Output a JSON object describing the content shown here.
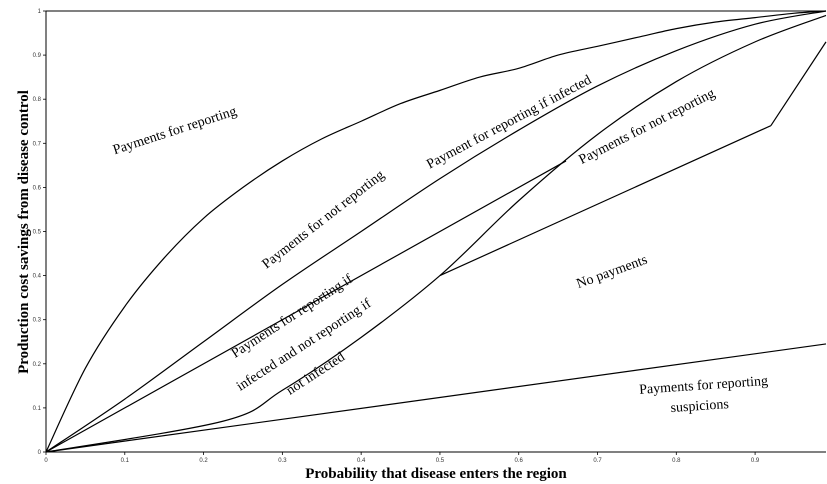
{
  "chart_data": {
    "type": "line",
    "title": "",
    "xlabel": "Probability that disease enters the region",
    "ylabel": "Production cost savings from disease control",
    "xlim": [
      0,
      1
    ],
    "ylim": [
      0,
      1
    ],
    "x_ticks": [
      "0",
      "0.1",
      "0.2",
      "0.3",
      "0.4",
      "0.5",
      "0.6",
      "0.7",
      "0.8",
      "0.9"
    ],
    "y_ticks": [
      "0",
      "0.1",
      "0.2",
      "0.3",
      "0.4",
      "0.5",
      "0.6",
      "0.7",
      "0.8",
      "0.9",
      "1"
    ],
    "grid": false,
    "legend": "none",
    "boundaries": [
      {
        "id": "top-concave",
        "points": [
          [
            0,
            0
          ],
          [
            0.05,
            0.19
          ],
          [
            0.1,
            0.33
          ],
          [
            0.15,
            0.44
          ],
          [
            0.2,
            0.53
          ],
          [
            0.25,
            0.6
          ],
          [
            0.3,
            0.66
          ],
          [
            0.35,
            0.71
          ],
          [
            0.4,
            0.75
          ],
          [
            0.45,
            0.79
          ],
          [
            0.5,
            0.82
          ],
          [
            0.55,
            0.85
          ],
          [
            0.6,
            0.87
          ],
          [
            0.65,
            0.9
          ],
          [
            0.7,
            0.92
          ],
          [
            0.75,
            0.94
          ],
          [
            0.8,
            0.96
          ],
          [
            0.85,
            0.975
          ],
          [
            0.9,
            0.985
          ],
          [
            0.95,
            0.995
          ],
          [
            0.99,
            1.0
          ]
        ]
      },
      {
        "id": "second-curve",
        "points": [
          [
            0,
            0
          ],
          [
            0.1,
            0.12
          ],
          [
            0.2,
            0.25
          ],
          [
            0.3,
            0.38
          ],
          [
            0.4,
            0.5
          ],
          [
            0.5,
            0.62
          ],
          [
            0.6,
            0.73
          ],
          [
            0.7,
            0.83
          ],
          [
            0.8,
            0.91
          ],
          [
            0.9,
            0.97
          ],
          [
            0.99,
            1.0
          ]
        ]
      },
      {
        "id": "straight-to-0.66",
        "points": [
          [
            0,
            0
          ],
          [
            0.66,
            0.66
          ]
        ]
      },
      {
        "id": "convex-curve",
        "points": [
          [
            0,
            0
          ],
          [
            0.225,
            0.07
          ],
          [
            0.3,
            0.14
          ],
          [
            0.4,
            0.26
          ],
          [
            0.5,
            0.4
          ],
          [
            0.6,
            0.57
          ],
          [
            0.7,
            0.72
          ],
          [
            0.8,
            0.84
          ],
          [
            0.9,
            0.93
          ],
          [
            0.99,
            0.99
          ]
        ]
      },
      {
        "id": "mid-segment",
        "points": [
          [
            0.5,
            0.4
          ],
          [
            0.92,
            0.74
          ]
        ]
      },
      {
        "id": "right-end-segment",
        "points": [
          [
            0.92,
            0.74
          ],
          [
            0.99,
            0.93
          ]
        ]
      },
      {
        "id": "bottom-line",
        "points": [
          [
            0,
            0
          ],
          [
            0.99,
            0.245
          ]
        ]
      }
    ],
    "annotations": [
      {
        "text": "Payments for reporting",
        "x": 0.165,
        "y": 0.72,
        "rotate": -18
      },
      {
        "text": "Payments for not reporting",
        "x": 0.355,
        "y": 0.52,
        "rotate": -38
      },
      {
        "text": "Payment for reporting if infected",
        "x": 0.59,
        "y": 0.74,
        "rotate": -28
      },
      {
        "text": "Payments for not reporting",
        "x": 0.765,
        "y": 0.73,
        "rotate": -27
      },
      {
        "text": "No payments",
        "x": 0.72,
        "y": 0.4,
        "rotate": -20
      },
      {
        "text": "Payments for reporting if",
        "x": 0.315,
        "y": 0.3,
        "rotate": -33
      },
      {
        "text": "infected and not reporting if",
        "x": 0.33,
        "y": 0.235,
        "rotate": -33
      },
      {
        "text": "not infected",
        "x": 0.345,
        "y": 0.17,
        "rotate": -33
      },
      {
        "text": "Payments for reporting",
        "x": 0.835,
        "y": 0.142,
        "rotate": -4
      },
      {
        "text": "suspicions",
        "x": 0.83,
        "y": 0.095,
        "rotate": -4
      }
    ]
  }
}
